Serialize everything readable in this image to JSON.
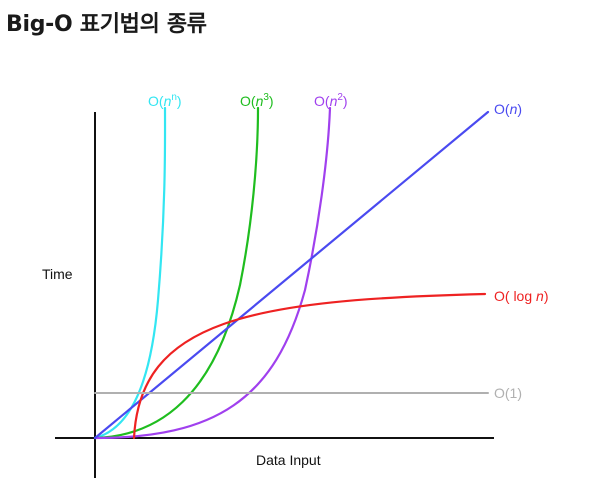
{
  "page": {
    "title": "Big-O 표기법의 종류"
  },
  "chart_data": {
    "type": "line",
    "title": "",
    "xlabel": "Data Input",
    "ylabel": "Time",
    "grid": false,
    "legend": "labels at curve ends",
    "series": [
      {
        "name": "O(n^n)",
        "label_prefix": "O(",
        "label_var": "n",
        "label_sup": "n",
        "label_suffix": ")",
        "color": "#33e6f2",
        "kind": "nn"
      },
      {
        "name": "O(n^3)",
        "label_prefix": "O(",
        "label_var": "n",
        "label_sup": "3",
        "label_suffix": ")",
        "color": "#1fbd1f",
        "kind": "n3"
      },
      {
        "name": "O(n^2)",
        "label_prefix": "O(",
        "label_var": "n",
        "label_sup": "2",
        "label_suffix": ")",
        "color": "#a040ee",
        "kind": "n2"
      },
      {
        "name": "O(n)",
        "label_prefix": "O(",
        "label_var": "n",
        "label_sup": "",
        "label_suffix": ")",
        "color": "#4a4af0",
        "kind": "n"
      },
      {
        "name": "O(log n)",
        "label_prefix": "O( log ",
        "label_var": "n",
        "label_sup": "",
        "label_suffix": ")",
        "color": "#ee2222",
        "kind": "log"
      },
      {
        "name": "O(1)",
        "label_prefix": "O(1)",
        "label_var": "",
        "label_sup": "",
        "label_suffix": "",
        "color": "#b0b0b0",
        "kind": "const"
      }
    ]
  }
}
